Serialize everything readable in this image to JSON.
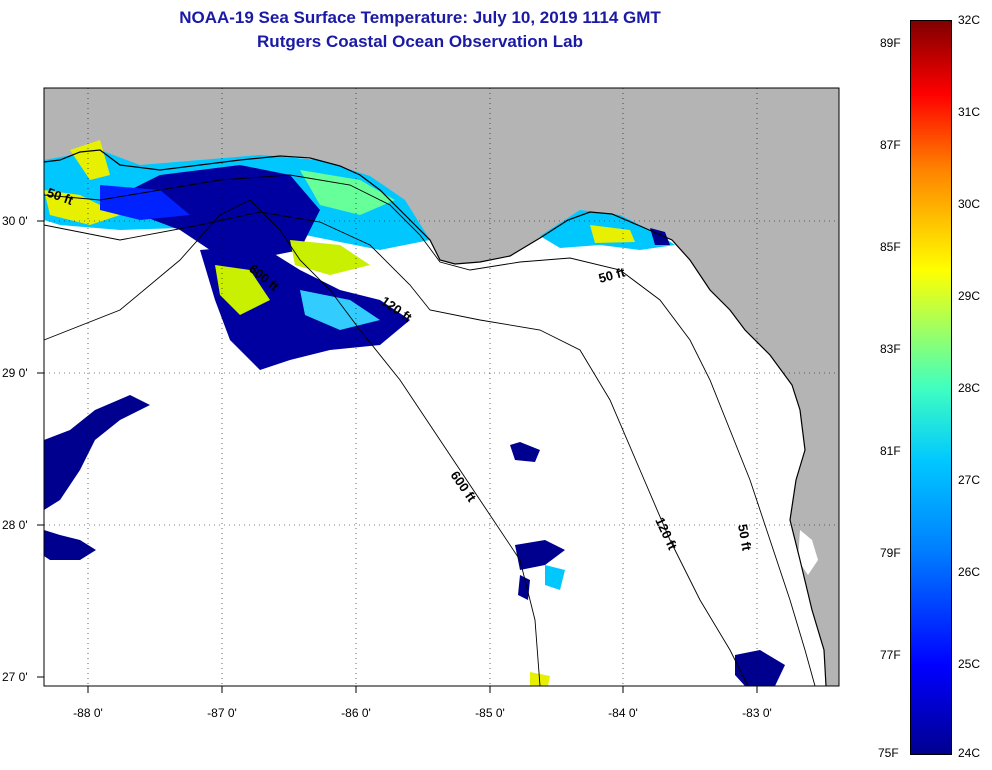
{
  "title": "NOAA-19 Sea Surface Temperature:  July 10, 2019 1114 GMT",
  "subtitle": "Rutgers Coastal Ocean Observation Lab",
  "lon_ticks": [
    "-88 0'",
    "-87 0'",
    "-86 0'",
    "-85 0'",
    "-84 0'",
    "-83 0'"
  ],
  "lat_ticks": [
    "30 0'",
    "29 0'",
    "28 0'",
    "27 0'"
  ],
  "depth_labels": {
    "d50_west": "50 ft",
    "d600_west": "600 ft",
    "d120_mid": "120 ft",
    "d50_big_bend": "50 ft",
    "d600_south": "600 ft",
    "d120_south": "120 ft",
    "d50_south": "50 ft"
  },
  "colorbar": {
    "celsius": [
      "32C",
      "31C",
      "30C",
      "29C",
      "28C",
      "27C",
      "26C",
      "25C",
      "24C"
    ],
    "fahrenheit": [
      "89F",
      "87F",
      "85F",
      "83F",
      "81F",
      "79F",
      "77F",
      "75F"
    ]
  },
  "colors": {
    "land": "#b4b4b4",
    "title": "#1a1aa6",
    "sst_cold": "#00008f",
    "sst_mid": "#00c8ff",
    "sst_warm": "#ffff00",
    "sst_hot": "#800000"
  }
}
